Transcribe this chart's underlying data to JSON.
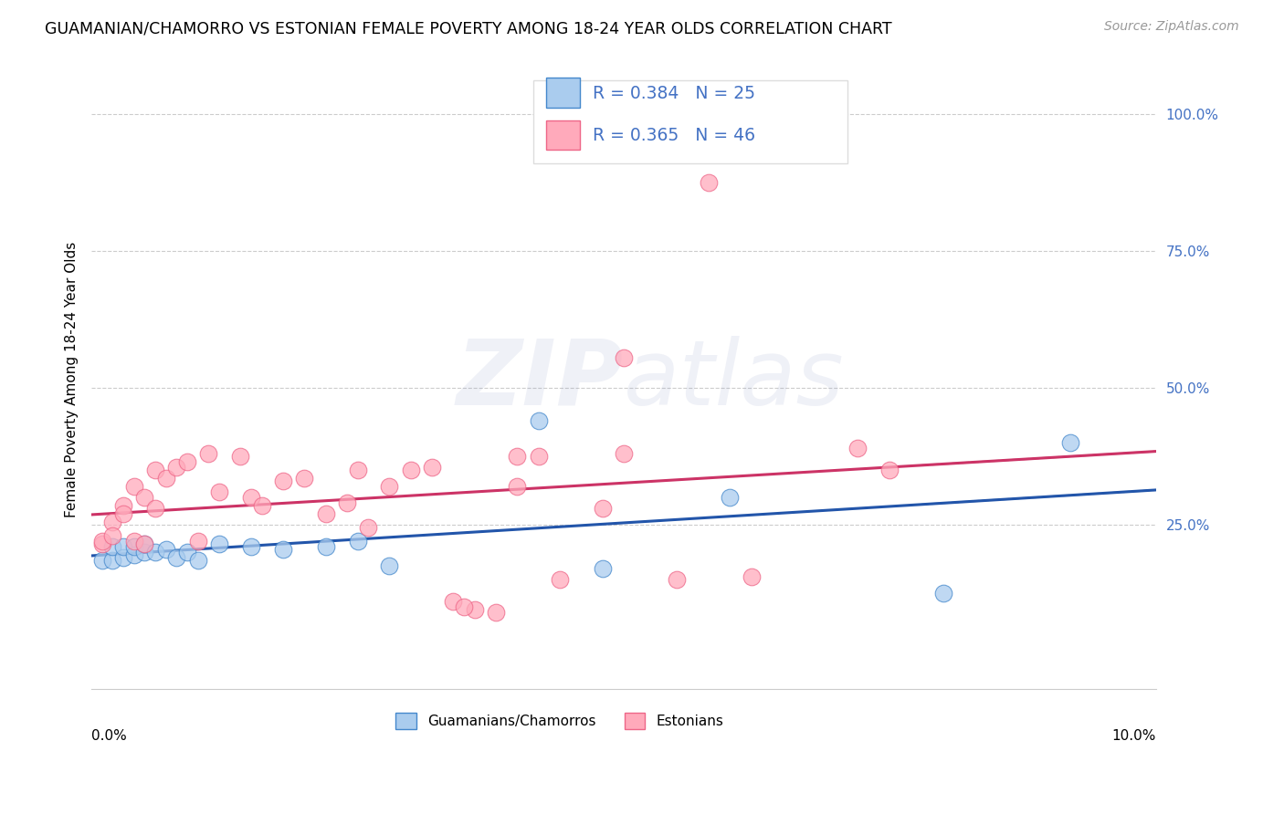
{
  "title": "GUAMANIAN/CHAMORRO VS ESTONIAN FEMALE POVERTY AMONG 18-24 YEAR OLDS CORRELATION CHART",
  "source": "Source: ZipAtlas.com",
  "ylabel": "Female Poverty Among 18-24 Year Olds",
  "xlim": [
    0.0,
    0.1
  ],
  "ylim": [
    -0.05,
    1.08
  ],
  "blue_scatter_color": "#aaccee",
  "blue_edge_color": "#4488cc",
  "pink_scatter_color": "#ffaabb",
  "pink_edge_color": "#ee6688",
  "blue_line_color": "#2255aa",
  "pink_line_color": "#cc3366",
  "watermark_color": "#c8d4e8",
  "grid_color": "#cccccc",
  "background_color": "#ffffff",
  "ytick_color": "#4472c4",
  "guamanian_x": [
    0.001,
    0.002,
    0.002,
    0.003,
    0.003,
    0.004,
    0.004,
    0.005,
    0.005,
    0.006,
    0.007,
    0.008,
    0.009,
    0.01,
    0.012,
    0.015,
    0.018,
    0.022,
    0.025,
    0.028,
    0.042,
    0.048,
    0.06,
    0.08,
    0.092
  ],
  "guamanian_y": [
    0.185,
    0.185,
    0.21,
    0.19,
    0.21,
    0.195,
    0.21,
    0.2,
    0.215,
    0.2,
    0.205,
    0.19,
    0.2,
    0.185,
    0.215,
    0.21,
    0.205,
    0.21,
    0.22,
    0.175,
    0.44,
    0.17,
    0.3,
    0.125,
    0.4
  ],
  "estonian_x": [
    0.001,
    0.001,
    0.002,
    0.002,
    0.003,
    0.003,
    0.004,
    0.004,
    0.005,
    0.005,
    0.006,
    0.006,
    0.007,
    0.008,
    0.009,
    0.01,
    0.011,
    0.012,
    0.014,
    0.015,
    0.016,
    0.018,
    0.02,
    0.022,
    0.024,
    0.025,
    0.026,
    0.028,
    0.03,
    0.032,
    0.034,
    0.036,
    0.038,
    0.04,
    0.04,
    0.042,
    0.044,
    0.048,
    0.05,
    0.055,
    0.058,
    0.062,
    0.072,
    0.075,
    0.05,
    0.035
  ],
  "estonian_y": [
    0.215,
    0.22,
    0.255,
    0.23,
    0.285,
    0.27,
    0.32,
    0.22,
    0.3,
    0.215,
    0.35,
    0.28,
    0.335,
    0.355,
    0.365,
    0.22,
    0.38,
    0.31,
    0.375,
    0.3,
    0.285,
    0.33,
    0.335,
    0.27,
    0.29,
    0.35,
    0.245,
    0.32,
    0.35,
    0.355,
    0.11,
    0.095,
    0.09,
    0.32,
    0.375,
    0.375,
    0.15,
    0.28,
    0.38,
    0.15,
    0.875,
    0.155,
    0.39,
    0.35,
    0.555,
    0.1
  ],
  "r_blue": 0.384,
  "n_blue": 25,
  "r_pink": 0.365,
  "n_pink": 46
}
